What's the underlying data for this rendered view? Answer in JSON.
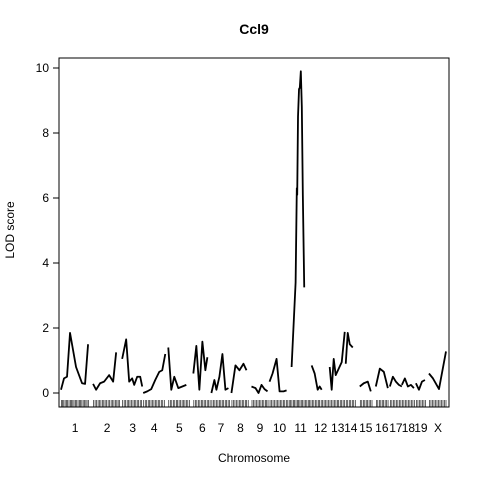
{
  "chart_data": {
    "type": "line",
    "title": "Ccl9",
    "xlabel": "Chromosome",
    "ylabel": "LOD score",
    "ylim": [
      0,
      10
    ],
    "y_ticks": [
      0,
      2,
      4,
      6,
      8,
      10
    ],
    "grid": false,
    "chromosomes": [
      {
        "label": "1",
        "start": 0,
        "end": 28,
        "points": [
          [
            0,
            0.1
          ],
          [
            3,
            0.45
          ],
          [
            6,
            0.5
          ],
          [
            9,
            1.85
          ],
          [
            15,
            0.8
          ],
          [
            21,
            0.3
          ],
          [
            24,
            0.28
          ],
          [
            27,
            1.5
          ]
        ]
      },
      {
        "label": "2",
        "start": 32,
        "end": 60,
        "points": [
          [
            0,
            0.28
          ],
          [
            3,
            0.1
          ],
          [
            7,
            0.3
          ],
          [
            11,
            0.35
          ],
          [
            16,
            0.55
          ],
          [
            20,
            0.35
          ],
          [
            23,
            1.25
          ]
        ]
      },
      {
        "label": "3",
        "start": 61,
        "end": 82,
        "points": [
          [
            0,
            1.05
          ],
          [
            4,
            1.65
          ],
          [
            7,
            0.35
          ],
          [
            10,
            0.45
          ],
          [
            12,
            0.25
          ],
          [
            15,
            0.5
          ],
          [
            18,
            0.5
          ],
          [
            20,
            0.2
          ]
        ]
      },
      {
        "label": "4",
        "start": 82,
        "end": 104,
        "points": [
          [
            0,
            0.0
          ],
          [
            4,
            0.05
          ],
          [
            8,
            0.12
          ],
          [
            12,
            0.4
          ],
          [
            16,
            0.65
          ],
          [
            19,
            0.7
          ],
          [
            22,
            1.2
          ]
        ]
      },
      {
        "label": "5",
        "start": 107,
        "end": 129,
        "points": [
          [
            0,
            1.4
          ],
          [
            3,
            0.1
          ],
          [
            6,
            0.5
          ],
          [
            10,
            0.15
          ],
          [
            14,
            0.2
          ],
          [
            18,
            0.25
          ]
        ]
      },
      {
        "label": "6",
        "start": 132,
        "end": 150,
        "points": [
          [
            0,
            0.6
          ],
          [
            3,
            1.45
          ],
          [
            6,
            0.1
          ],
          [
            9,
            1.58
          ],
          [
            12,
            0.7
          ],
          [
            14,
            1.1
          ]
        ]
      },
      {
        "label": "7",
        "start": 150,
        "end": 169,
        "points": [
          [
            0,
            0.0
          ],
          [
            3,
            0.4
          ],
          [
            5,
            0.1
          ],
          [
            8,
            0.5
          ],
          [
            11,
            1.2
          ],
          [
            14,
            0.1
          ],
          [
            17,
            0.15
          ]
        ]
      },
      {
        "label": "8",
        "start": 170,
        "end": 188,
        "points": [
          [
            0,
            0.0
          ],
          [
            4,
            0.85
          ],
          [
            8,
            0.7
          ],
          [
            12,
            0.9
          ],
          [
            15,
            0.7
          ]
        ]
      },
      {
        "label": "9",
        "start": 190,
        "end": 207,
        "points": [
          [
            0,
            0.2
          ],
          [
            4,
            0.15
          ],
          [
            7,
            0.0
          ],
          [
            10,
            0.25
          ],
          [
            13,
            0.12
          ],
          [
            16,
            0.05
          ]
        ]
      },
      {
        "label": "10",
        "start": 208,
        "end": 228,
        "points": [
          [
            0,
            0.35
          ],
          [
            3,
            0.6
          ],
          [
            7,
            1.05
          ],
          [
            10,
            0.05
          ],
          [
            14,
            0.05
          ],
          [
            17,
            0.08
          ]
        ]
      },
      {
        "label": "11",
        "start": 228,
        "end": 250,
        "points": [
          [
            2,
            0.8
          ],
          [
            6,
            3.4
          ],
          [
            7.2,
            6.3
          ],
          [
            7.6,
            6.1
          ],
          [
            8.4,
            8.5
          ],
          [
            9.4,
            9.35
          ],
          [
            10.2,
            9.4
          ],
          [
            11.2,
            9.9
          ],
          [
            12.2,
            8.8
          ],
          [
            13.2,
            6.1
          ],
          [
            14.6,
            3.25
          ]
        ]
      },
      {
        "label": "12",
        "start": 250,
        "end": 268,
        "points": [
          [
            0,
            0.85
          ],
          [
            3,
            0.6
          ],
          [
            6,
            0.1
          ],
          [
            8,
            0.2
          ],
          [
            10,
            0.1
          ]
        ]
      },
      {
        "label": "13",
        "start": 268,
        "end": 284,
        "points": [
          [
            0,
            0.8
          ],
          [
            2,
            0.1
          ],
          [
            4,
            1.05
          ],
          [
            6,
            0.55
          ],
          [
            9,
            0.75
          ],
          [
            12,
            0.95
          ],
          [
            15,
            1.88
          ]
        ]
      },
      {
        "label": "14",
        "start": 284,
        "end": 294,
        "points": [
          [
            0,
            0.9
          ],
          [
            2,
            1.85
          ],
          [
            4,
            1.5
          ],
          [
            7,
            1.4
          ]
        ]
      },
      {
        "label": "15",
        "start": 298,
        "end": 310,
        "points": [
          [
            0,
            0.2
          ],
          [
            4,
            0.3
          ],
          [
            8,
            0.35
          ],
          [
            11,
            0.05
          ]
        ]
      },
      {
        "label": "16",
        "start": 314,
        "end": 326,
        "points": [
          [
            0,
            0.2
          ],
          [
            4,
            0.75
          ],
          [
            8,
            0.65
          ],
          [
            12,
            0.15
          ]
        ]
      },
      {
        "label": "17",
        "start": 328,
        "end": 340,
        "points": [
          [
            0,
            0.2
          ],
          [
            3,
            0.5
          ],
          [
            6,
            0.35
          ],
          [
            9,
            0.25
          ],
          [
            12,
            0.2
          ]
        ]
      },
      {
        "label": "18",
        "start": 340,
        "end": 353,
        "points": [
          [
            0,
            0.25
          ],
          [
            3,
            0.45
          ],
          [
            6,
            0.2
          ],
          [
            9,
            0.25
          ],
          [
            12,
            0.15
          ]
        ]
      },
      {
        "label": "19",
        "start": 354,
        "end": 364,
        "points": [
          [
            0,
            0.3
          ],
          [
            3,
            0.1
          ],
          [
            6,
            0.35
          ],
          [
            9,
            0.4
          ]
        ]
      },
      {
        "label": "X",
        "start": 367,
        "end": 385,
        "points": [
          [
            0,
            0.6
          ],
          [
            4,
            0.45
          ],
          [
            10,
            0.12
          ],
          [
            17,
            1.28
          ]
        ]
      }
    ],
    "markers": [
      0.3,
      1.5,
      2.8,
      4.1,
      5.3,
      6.7,
      8,
      9.4,
      10.5,
      11.8,
      13,
      14.4,
      15.7,
      17,
      18.3,
      19.5,
      20.8,
      22.1,
      23.4,
      24.8,
      26,
      27.3,
      32.5,
      34,
      35.5,
      37,
      38.4,
      39.8,
      41.2,
      42.7,
      44,
      45.5,
      47,
      48.5,
      50,
      51.4,
      52.8,
      54.2,
      55.7,
      57,
      58.5,
      61.5,
      63,
      64.5,
      66,
      67.4,
      68.8,
      70.3,
      71.8,
      73.2,
      74.6,
      76,
      77.5,
      79,
      80.4,
      82.5,
      84,
      85.5,
      87,
      88.4,
      89.8,
      91.2,
      92.7,
      94.2,
      95.6,
      97,
      98.5,
      100,
      101.5,
      103,
      107.5,
      109,
      110.5,
      112,
      113.5,
      115,
      116.4,
      117.8,
      119.3,
      120.8,
      122.2,
      123.6,
      125,
      126.5,
      128,
      132.5,
      134,
      135.5,
      137,
      138.5,
      140,
      141.4,
      142.8,
      144.3,
      145.8,
      147.2,
      148.7,
      150.5,
      152,
      153.5,
      155,
      156.5,
      158,
      159.4,
      160.8,
      162.3,
      163.8,
      165.2,
      166.7,
      168,
      170.5,
      172,
      173.5,
      175,
      176.5,
      178,
      179.4,
      180.8,
      182.3,
      183.8,
      185.2,
      186.7,
      190.5,
      192,
      193.5,
      195,
      196.5,
      198,
      199.4,
      200.8,
      202.3,
      203.8,
      205.2,
      206.5,
      208.5,
      210,
      211.5,
      213,
      214.5,
      216,
      217.4,
      218.8,
      220.3,
      221.8,
      223.2,
      224.7,
      226.2,
      227.6,
      229,
      230.3,
      231.7,
      233,
      234.4,
      235.7,
      237,
      238.3,
      239.6,
      241,
      242.4,
      243.8,
      245.2,
      246.6,
      248,
      249.3,
      250.7,
      252.2,
      253.7,
      255.2,
      256.6,
      258,
      259.5,
      261,
      262.4,
      263.8,
      265.3,
      266.8,
      268.3,
      269.8,
      271.3,
      272.7,
      274.2,
      275.6,
      277,
      278.5,
      280,
      281.4,
      282.8,
      284.5,
      286,
      287.5,
      289,
      290.5,
      292,
      293.5,
      298.5,
      300,
      301.5,
      303,
      304.4,
      305.8,
      307.3,
      308.8,
      310.2,
      314.5,
      316,
      317.5,
      319,
      320.4,
      321.8,
      323.3,
      324.8,
      326.2,
      328.5,
      330,
      331.5,
      333,
      334.5,
      336,
      337.5,
      339,
      340.5,
      342,
      343.5,
      345,
      346.5,
      348,
      349.5,
      351,
      352.5,
      354.5,
      356,
      357.5,
      359,
      360.5,
      362,
      363.5,
      367.5,
      369,
      370.5,
      372,
      373.5,
      375,
      376.5,
      378,
      379.5,
      381,
      382.5,
      384
    ],
    "x_total": [
      0,
      385
    ]
  }
}
